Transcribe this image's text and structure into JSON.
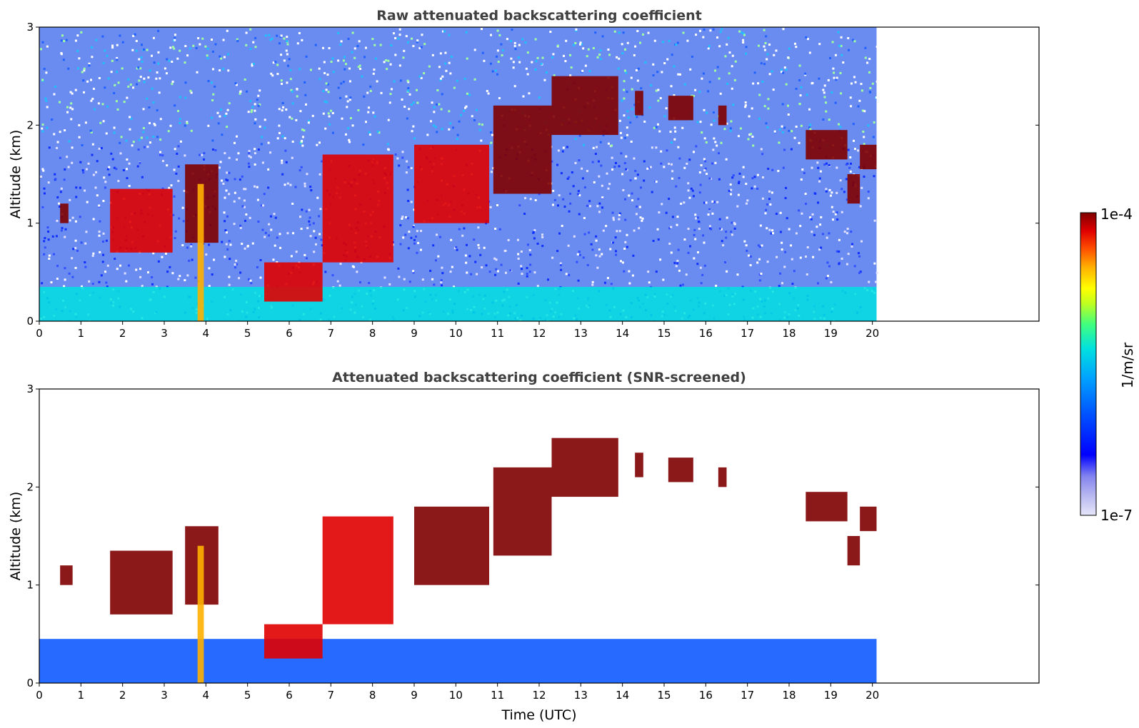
{
  "chart_data": [
    {
      "type": "heatmap",
      "title": "Raw attenuated backscattering coefficient",
      "xlabel": "",
      "ylabel": "Altitude (km)",
      "xlim": [
        0,
        24
      ],
      "ylim": [
        0,
        3
      ],
      "x_ticks": [
        0,
        1,
        2,
        3,
        4,
        5,
        6,
        7,
        8,
        9,
        10,
        11,
        12,
        13,
        14,
        15,
        16,
        17,
        18,
        19,
        20
      ],
      "y_ticks": [
        0,
        1,
        2,
        3
      ],
      "data_extent_x": [
        0,
        20.1
      ],
      "features": [
        {
          "x": [
            0,
            20.1
          ],
          "y": [
            0,
            0.35
          ],
          "value": 2e-06
        },
        {
          "x": [
            0.5,
            0.7
          ],
          "y": [
            1.0,
            1.2
          ],
          "value": 8e-05
        },
        {
          "x": [
            1.7,
            3.2
          ],
          "y": [
            0.7,
            1.35
          ],
          "value": 6e-05
        },
        {
          "x": [
            3.5,
            4.3
          ],
          "y": [
            0.8,
            1.6
          ],
          "value": 7e-05
        },
        {
          "x": [
            3.8,
            3.95
          ],
          "y": [
            0,
            1.4
          ],
          "value": 2e-05
        },
        {
          "x": [
            5.4,
            6.8
          ],
          "y": [
            0.2,
            0.6
          ],
          "value": 5e-05
        },
        {
          "x": [
            6.8,
            8.5
          ],
          "y": [
            0.6,
            1.7
          ],
          "value": 5e-05
        },
        {
          "x": [
            9.0,
            10.8
          ],
          "y": [
            1.0,
            1.8
          ],
          "value": 6e-05
        },
        {
          "x": [
            10.9,
            12.3
          ],
          "y": [
            1.3,
            2.2
          ],
          "value": 7e-05
        },
        {
          "x": [
            12.3,
            13.9
          ],
          "y": [
            1.9,
            2.5
          ],
          "value": 9e-05
        },
        {
          "x": [
            14.3,
            14.5
          ],
          "y": [
            2.1,
            2.35
          ],
          "value": 8e-05
        },
        {
          "x": [
            15.1,
            15.7
          ],
          "y": [
            2.05,
            2.3
          ],
          "value": 8e-05
        },
        {
          "x": [
            16.3,
            16.5
          ],
          "y": [
            2.0,
            2.2
          ],
          "value": 8e-05
        },
        {
          "x": [
            18.4,
            19.4
          ],
          "y": [
            1.65,
            1.95
          ],
          "value": 9e-05
        },
        {
          "x": [
            19.4,
            19.7
          ],
          "y": [
            1.2,
            1.5
          ],
          "value": 7e-05
        },
        {
          "x": [
            19.7,
            20.1
          ],
          "y": [
            1.55,
            1.8
          ],
          "value": 9e-05
        }
      ]
    },
    {
      "type": "heatmap",
      "title": "Attenuated backscattering coefficient (SNR-screened)",
      "xlabel": "Time (UTC)",
      "ylabel": "Altitude (km)",
      "xlim": [
        0,
        24
      ],
      "ylim": [
        0,
        3
      ],
      "x_ticks": [
        0,
        1,
        2,
        3,
        4,
        5,
        6,
        7,
        8,
        9,
        10,
        11,
        12,
        13,
        14,
        15,
        16,
        17,
        18,
        19,
        20
      ],
      "y_ticks": [
        0,
        1,
        2,
        3
      ],
      "data_extent_x": [
        0,
        20.1
      ],
      "features": [
        {
          "x": [
            0,
            20.1
          ],
          "y": [
            0,
            0.45
          ],
          "value": 1e-06
        },
        {
          "x": [
            0.5,
            0.8
          ],
          "y": [
            1.0,
            1.2
          ],
          "value": 8e-05
        },
        {
          "x": [
            1.7,
            3.2
          ],
          "y": [
            0.7,
            1.35
          ],
          "value": 7e-05
        },
        {
          "x": [
            3.5,
            4.3
          ],
          "y": [
            0.8,
            1.6
          ],
          "value": 8e-05
        },
        {
          "x": [
            3.8,
            3.95
          ],
          "y": [
            0,
            1.4
          ],
          "value": 2e-05
        },
        {
          "x": [
            5.4,
            6.8
          ],
          "y": [
            0.25,
            0.6
          ],
          "value": 6e-05
        },
        {
          "x": [
            6.8,
            8.5
          ],
          "y": [
            0.6,
            1.7
          ],
          "value": 6e-05
        },
        {
          "x": [
            9.0,
            10.8
          ],
          "y": [
            1.0,
            1.8
          ],
          "value": 8e-05
        },
        {
          "x": [
            10.9,
            12.3
          ],
          "y": [
            1.3,
            2.2
          ],
          "value": 9e-05
        },
        {
          "x": [
            12.3,
            13.9
          ],
          "y": [
            1.9,
            2.5
          ],
          "value": 0.0001
        },
        {
          "x": [
            14.3,
            14.5
          ],
          "y": [
            2.1,
            2.35
          ],
          "value": 0.0001
        },
        {
          "x": [
            15.1,
            15.7
          ],
          "y": [
            2.05,
            2.3
          ],
          "value": 0.0001
        },
        {
          "x": [
            16.3,
            16.5
          ],
          "y": [
            2.0,
            2.2
          ],
          "value": 0.0001
        },
        {
          "x": [
            18.4,
            19.4
          ],
          "y": [
            1.65,
            1.95
          ],
          "value": 0.0001
        },
        {
          "x": [
            19.4,
            19.7
          ],
          "y": [
            1.2,
            1.5
          ],
          "value": 7e-05
        },
        {
          "x": [
            19.7,
            20.1
          ],
          "y": [
            1.55,
            1.8
          ],
          "value": 0.0001
        }
      ]
    }
  ],
  "colorbar": {
    "label": "1/m/sr",
    "max_label": "1e-4",
    "min_label": "1e-7",
    "colors": [
      "#e6e6fa",
      "#b4b4f0",
      "#8282f0",
      "#0000ff",
      "#0050ff",
      "#00a0ff",
      "#00e0e0",
      "#40ff80",
      "#c0ff20",
      "#ffff00",
      "#ffb000",
      "#ff5000",
      "#e00000",
      "#800000"
    ]
  }
}
